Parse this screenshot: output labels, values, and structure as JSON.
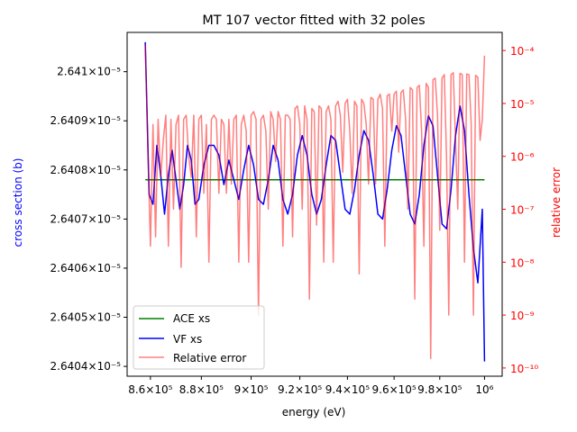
{
  "chart_data": {
    "type": "line",
    "title": "MT 107 vector fitted with 32 poles",
    "xlabel": "energy (eV)",
    "ylabel": "cross section (b)",
    "ylabel_right": "relative error",
    "xscale": "log",
    "xlim": [
      851000,
      1008000
    ],
    "ylim": [
      2.64038e-05,
      2.64108e-05
    ],
    "ylim_right": [
      7e-11,
      0.00022
    ],
    "yscale_right": "log",
    "x_ticks": [
      {
        "value": 860000,
        "label": "8.6×10⁵"
      },
      {
        "value": 880000,
        "label": "8.8×10⁵"
      },
      {
        "value": 900000,
        "label": "9×10⁵"
      },
      {
        "value": 920000,
        "label": "9.2×10⁵"
      },
      {
        "value": 940000,
        "label": "9.4×10⁵"
      },
      {
        "value": 960000,
        "label": "9.6×10⁵"
      },
      {
        "value": 980000,
        "label": "9.8×10⁵"
      },
      {
        "value": 1000000,
        "label": "10⁶"
      }
    ],
    "y_ticks": [
      {
        "value": 2.6404e-05,
        "label": "2.6404×10⁻⁵"
      },
      {
        "value": 2.6405e-05,
        "label": "2.6405×10⁻⁵"
      },
      {
        "value": 2.6406e-05,
        "label": "2.6406×10⁻⁵"
      },
      {
        "value": 2.6407e-05,
        "label": "2.6407×10⁻⁵"
      },
      {
        "value": 2.6408e-05,
        "label": "2.6408×10⁻⁵"
      },
      {
        "value": 2.6409e-05,
        "label": "2.6409×10⁻⁵"
      },
      {
        "value": 2.641e-05,
        "label": "2.641×10⁻⁵"
      }
    ],
    "y_ticks_right": [
      {
        "value": 1e-10,
        "label": "10⁻¹⁰"
      },
      {
        "value": 1e-09,
        "label": "10⁻⁹"
      },
      {
        "value": 1e-08,
        "label": "10⁻⁸"
      },
      {
        "value": 1e-07,
        "label": "10⁻⁷"
      },
      {
        "value": 1e-06,
        "label": "10⁻⁶"
      },
      {
        "value": 1e-05,
        "label": "10⁻⁵"
      },
      {
        "value": 0.0001,
        "label": "10⁻⁴"
      }
    ],
    "legend_position": "lower-left",
    "series": [
      {
        "name": "ACE xs",
        "axis": "left",
        "color": "#008000",
        "x": [
          858000,
          1000000
        ],
        "y": [
          2.64078e-05,
          2.64078e-05
        ]
      },
      {
        "name": "VF xs",
        "axis": "left",
        "color": "#0000ff",
        "x": [
          858000,
          859500,
          861000,
          862500,
          864000,
          865500,
          867000,
          868500,
          870000,
          871500,
          873000,
          874500,
          876000,
          877500,
          879000,
          881000,
          883000,
          885000,
          887000,
          889000,
          891000,
          893000,
          895000,
          897000,
          899000,
          901000,
          903000,
          905000,
          907000,
          909000,
          911000,
          913000,
          915000,
          917000,
          919000,
          921000,
          923000,
          925000,
          927000,
          929000,
          931000,
          933000,
          935000,
          937000,
          939000,
          941000,
          943000,
          945000,
          947000,
          949000,
          951000,
          953000,
          955000,
          957000,
          959000,
          961000,
          963000,
          965000,
          967000,
          969000,
          971000,
          973000,
          975000,
          977000,
          979000,
          981000,
          983000,
          985000,
          987000,
          989000,
          991000,
          993000,
          995000,
          997000,
          999000,
          1000000
        ],
        "y": [
          2.64106e-05,
          2.64075e-05,
          2.64073e-05,
          2.64085e-05,
          2.64079e-05,
          2.64071e-05,
          2.64079e-05,
          2.64084e-05,
          2.64078e-05,
          2.64072e-05,
          2.64077e-05,
          2.64085e-05,
          2.64082e-05,
          2.64073e-05,
          2.64074e-05,
          2.64081e-05,
          2.64085e-05,
          2.64085e-05,
          2.64083e-05,
          2.64077e-05,
          2.64082e-05,
          2.64078e-05,
          2.64074e-05,
          2.6408e-05,
          2.64085e-05,
          2.64081e-05,
          2.64074e-05,
          2.64073e-05,
          2.64078e-05,
          2.64085e-05,
          2.64082e-05,
          2.64074e-05,
          2.64071e-05,
          2.64075e-05,
          2.64083e-05,
          2.64087e-05,
          2.64083e-05,
          2.64075e-05,
          2.64071e-05,
          2.64074e-05,
          2.64081e-05,
          2.64087e-05,
          2.64086e-05,
          2.64079e-05,
          2.64072e-05,
          2.64071e-05,
          2.64076e-05,
          2.64083e-05,
          2.64088e-05,
          2.64086e-05,
          2.64079e-05,
          2.64071e-05,
          2.6407e-05,
          2.64076e-05,
          2.64084e-05,
          2.64089e-05,
          2.64087e-05,
          2.64079e-05,
          2.64071e-05,
          2.64069e-05,
          2.64075e-05,
          2.64085e-05,
          2.64091e-05,
          2.64089e-05,
          2.64079e-05,
          2.64069e-05,
          2.64068e-05,
          2.64076e-05,
          2.64087e-05,
          2.64093e-05,
          2.64088e-05,
          2.64075e-05,
          2.64064e-05,
          2.64057e-05,
          2.64072e-05,
          2.64041e-05
        ]
      },
      {
        "name": "Relative error",
        "axis": "right",
        "color": "#ff0000",
        "opacity": 0.5,
        "x": [
          858000,
          859000,
          860000,
          861000,
          862000,
          863000,
          864000,
          865000,
          866000,
          867000,
          868000,
          869000,
          870000,
          871000,
          872000,
          873000,
          874000,
          875000,
          876000,
          877000,
          878000,
          879000,
          880000,
          881000,
          882000,
          883000,
          884000,
          885000,
          886000,
          887000,
          888000,
          889000,
          890000,
          891000,
          892000,
          893000,
          894000,
          895000,
          896000,
          897000,
          898000,
          899000,
          900000,
          901000,
          902000,
          903000,
          904000,
          905000,
          906000,
          907000,
          908000,
          909000,
          910000,
          911000,
          912000,
          913000,
          914000,
          915000,
          916000,
          917000,
          918000,
          919000,
          920000,
          921000,
          922000,
          923000,
          924000,
          925000,
          926000,
          927000,
          928000,
          929000,
          930000,
          931000,
          932000,
          933000,
          934000,
          935000,
          936000,
          937000,
          938000,
          939000,
          940000,
          941000,
          942000,
          943000,
          944000,
          945000,
          946000,
          947000,
          948000,
          949000,
          950000,
          951000,
          952000,
          953000,
          954000,
          955000,
          956000,
          957000,
          958000,
          959000,
          960000,
          961000,
          962000,
          963000,
          964000,
          965000,
          966000,
          967000,
          968000,
          969000,
          970000,
          971000,
          972000,
          973000,
          974000,
          975000,
          976000,
          977000,
          978000,
          979000,
          980000,
          981000,
          982000,
          983000,
          984000,
          985000,
          986000,
          987000,
          988000,
          989000,
          990000,
          991000,
          992000,
          993000,
          994000,
          995000,
          996000,
          997000,
          998000,
          999000,
          1000000
        ],
        "y": [
          0.00013,
          1.5e-06,
          2e-08,
          4e-06,
          3e-08,
          5e-06,
          4e-07,
          2e-06,
          6e-06,
          2e-08,
          5e-06,
          1e-07,
          4e-06,
          6e-06,
          8e-09,
          5e-06,
          6e-06,
          1e-06,
          4e-07,
          6e-06,
          3e-08,
          5e-06,
          6e-06,
          2e-07,
          4e-06,
          1e-08,
          5e-06,
          6e-06,
          5e-06,
          2e-07,
          5e-06,
          4e-06,
          2e-07,
          5e-06,
          3e-07,
          5e-06,
          6e-06,
          1e-08,
          4e-06,
          6e-06,
          3e-06,
          1e-08,
          6e-06,
          7e-06,
          5e-06,
          1e-09,
          5e-06,
          6e-06,
          3e-06,
          1e-07,
          7e-06,
          5e-06,
          8e-07,
          7e-06,
          5e-06,
          2e-08,
          6e-06,
          6e-06,
          5e-06,
          3e-08,
          8e-06,
          9e-06,
          4e-06,
          1e-07,
          9e-06,
          5e-06,
          2e-09,
          8e-06,
          7e-06,
          5e-08,
          9e-06,
          8e-06,
          1e-08,
          7e-06,
          9e-06,
          5e-06,
          1e-08,
          9e-06,
          1.1e-05,
          6e-06,
          5e-07,
          1e-05,
          1.2e-05,
          3e-06,
          2e-07,
          1.1e-05,
          9e-06,
          6e-09,
          1.2e-05,
          1e-05,
          4e-06,
          3e-07,
          1.3e-05,
          1.2e-05,
          3e-07,
          1.2e-05,
          1.5e-05,
          8e-06,
          2e-08,
          1.4e-05,
          1.5e-05,
          3e-06,
          1.5e-05,
          1.7e-05,
          1.2e-06,
          1.6e-05,
          1.8e-05,
          5e-06,
          1e-07,
          2e-05,
          1.8e-05,
          2e-09,
          2e-05,
          2.2e-05,
          3e-06,
          2e-08,
          2.4e-05,
          2e-05,
          1.5e-10,
          2.8e-05,
          3e-05,
          6e-06,
          4e-08,
          3e-05,
          3.5e-05,
          1e-06,
          1e-09,
          3.5e-05,
          3.8e-05,
          2e-06,
          1e-07,
          3.7e-05,
          3.5e-05,
          1e-08,
          3.6e-05,
          3.5e-05,
          4e-06,
          1e-09,
          3.4e-05,
          3.1e-05,
          2e-06,
          5e-06,
          8e-05
        ]
      }
    ]
  }
}
